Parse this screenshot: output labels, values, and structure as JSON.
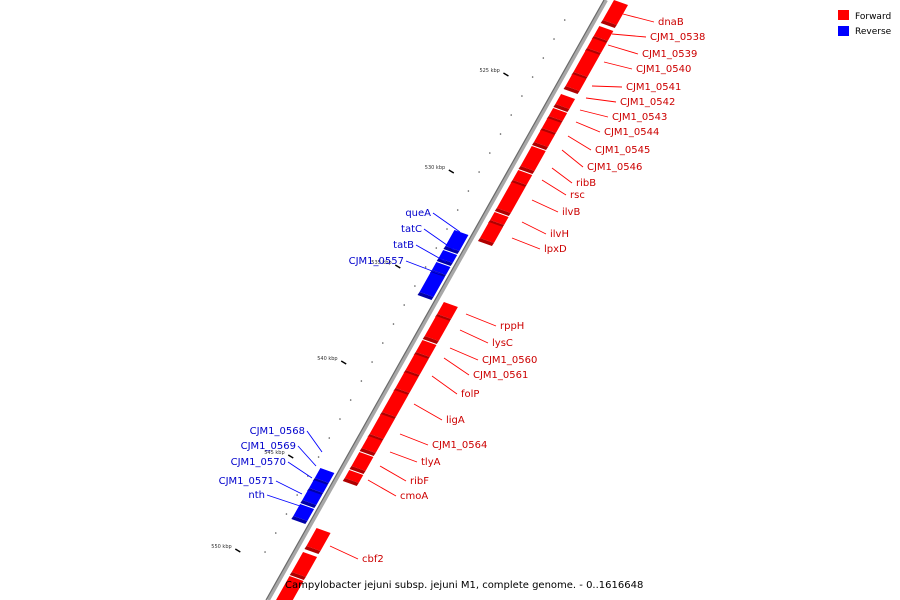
{
  "legend": {
    "forward": {
      "label": "Forward",
      "color": "#ff0000"
    },
    "reverse": {
      "label": "Reverse",
      "color": "#0000ff"
    }
  },
  "caption": "Campylobacter jejuni subsp. jejuni M1, complete genome. - 0..1616648",
  "ticks": [
    "525 kbp",
    "530 kbp",
    "535 kbp",
    "540 kbp",
    "545 kbp",
    "550 kbp"
  ],
  "forward_genes": [
    "dnaB",
    "CJM1_0538",
    "CJM1_0539",
    "CJM1_0540",
    "CJM1_0541",
    "CJM1_0542",
    "CJM1_0543",
    "CJM1_0544",
    "CJM1_0545",
    "CJM1_0546",
    "ribB",
    "rsc",
    "ilvB",
    "ilvH",
    "lpxD",
    "rppH",
    "lysC",
    "CJM1_0560",
    "CJM1_0561",
    "folP",
    "ligA",
    "CJM1_0564",
    "tlyA",
    "ribF",
    "cmoA",
    "cbf2"
  ],
  "reverse_genes": [
    "queA",
    "tatC",
    "tatB",
    "CJM1_0557",
    "CJM1_0568",
    "CJM1_0569",
    "CJM1_0570",
    "CJM1_0571",
    "nth"
  ]
}
